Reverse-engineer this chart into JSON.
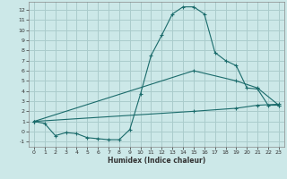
{
  "xlabel": "Humidex (Indice chaleur)",
  "background_color": "#cce8e8",
  "grid_color": "#aacccc",
  "line_color": "#1a6b6b",
  "xlim": [
    -0.5,
    23.5
  ],
  "ylim": [
    -1.5,
    12.8
  ],
  "xticks": [
    0,
    1,
    2,
    3,
    4,
    5,
    6,
    7,
    8,
    9,
    10,
    11,
    12,
    13,
    14,
    15,
    16,
    17,
    18,
    19,
    20,
    21,
    22,
    23
  ],
  "yticks": [
    -1,
    0,
    1,
    2,
    3,
    4,
    5,
    6,
    7,
    8,
    9,
    10,
    11,
    12
  ],
  "line1_x": [
    0,
    1,
    2,
    3,
    4,
    5,
    6,
    7,
    8,
    9,
    10,
    11,
    12,
    13,
    14,
    15,
    16,
    17,
    18,
    19,
    20,
    21,
    22,
    23
  ],
  "line1_y": [
    1.0,
    0.8,
    -0.4,
    -0.1,
    -0.2,
    -0.6,
    -0.7,
    -0.8,
    -0.8,
    0.2,
    3.7,
    7.5,
    9.5,
    11.6,
    12.3,
    12.3,
    11.6,
    7.8,
    7.0,
    6.5,
    4.3,
    4.2,
    2.6,
    2.6
  ],
  "line2_x": [
    0,
    15,
    19,
    21,
    23
  ],
  "line2_y": [
    1.0,
    6.0,
    5.0,
    4.3,
    2.6
  ],
  "line3_x": [
    0,
    15,
    19,
    21,
    23
  ],
  "line3_y": [
    1.0,
    2.0,
    2.3,
    2.6,
    2.7
  ],
  "tick_fontsize": 4.5,
  "xlabel_fontsize": 5.5,
  "xlabel_fontweight": "bold"
}
